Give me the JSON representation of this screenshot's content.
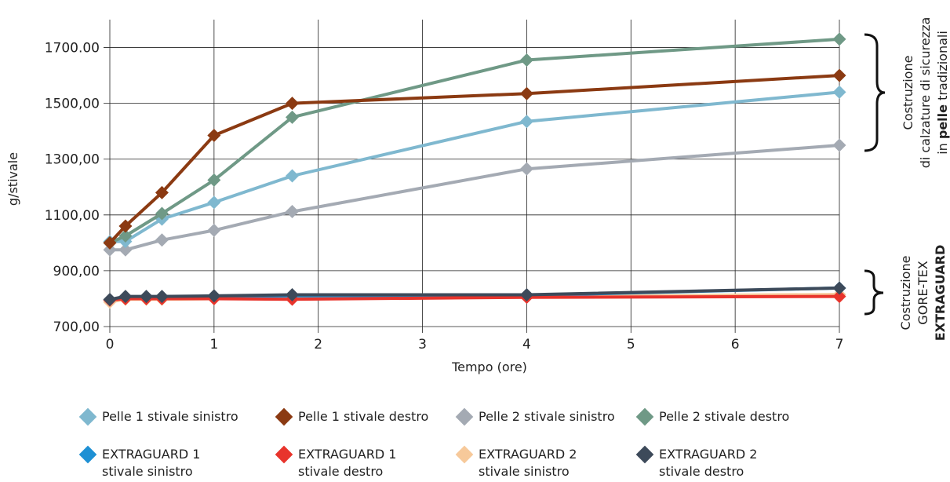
{
  "chart_data": {
    "type": "line",
    "xlabel": "Tempo (ore)",
    "ylabel": "g/stivale",
    "xlim": [
      0,
      7
    ],
    "ylim": [
      700,
      1800
    ],
    "xticks": [
      0,
      1,
      2,
      3,
      4,
      5,
      6,
      7
    ],
    "xtick_labels": [
      "0",
      "1",
      "2",
      "3",
      "4",
      "5",
      "6",
      "7"
    ],
    "yticks": [
      700,
      900,
      1100,
      1300,
      1500,
      1700
    ],
    "ytick_labels": [
      "700,00",
      "900,00",
      "1100,00",
      "1300,00",
      "1500,00",
      "1700.00"
    ],
    "grid": "vertical",
    "legend_position": "bottom",
    "series": [
      {
        "name": "Pelle 1 stivale sinistro",
        "color": "#7fb8cf",
        "x": [
          0,
          0.15,
          0.5,
          1,
          1.75,
          4,
          7
        ],
        "y": [
          1005,
          1005,
          1085,
          1145,
          1240,
          1435,
          1540
        ]
      },
      {
        "name": "Pelle 1 stivale destro",
        "color": "#8b3a12",
        "x": [
          0,
          0.15,
          0.5,
          1,
          1.75,
          4,
          7
        ],
        "y": [
          1000,
          1060,
          1180,
          1385,
          1500,
          1535,
          1600
        ]
      },
      {
        "name": "Pelle 2 stivale sinistro",
        "color": "#a4aab3",
        "x": [
          0,
          0.15,
          0.5,
          1,
          1.75,
          4,
          7
        ],
        "y": [
          975,
          975,
          1010,
          1045,
          1112,
          1265,
          1350
        ]
      },
      {
        "name": "Pelle 2 stivale destro",
        "color": "#6f9986",
        "x": [
          0,
          0.15,
          0.5,
          1,
          1.75,
          4,
          7
        ],
        "y": [
          1000,
          1025,
          1105,
          1225,
          1450,
          1655,
          1730
        ]
      },
      {
        "name": "EXTRAGUARD 1\nstivale sinistro",
        "color": "#1e90d4",
        "x": [
          0,
          0.15,
          0.35,
          0.5,
          1,
          1.75,
          4,
          7
        ],
        "y": [
          795,
          805,
          805,
          805,
          805,
          810,
          812,
          838
        ]
      },
      {
        "name": "EXTRAGUARD 1\nstivale destro",
        "color": "#e8342c",
        "x": [
          0,
          0.15,
          0.35,
          0.5,
          1,
          1.75,
          4,
          7
        ],
        "y": [
          795,
          800,
          800,
          800,
          800,
          798,
          805,
          808
        ]
      },
      {
        "name": "EXTRAGUARD 2\nstivale sinistro",
        "color": "#f7c99a",
        "x": [
          0,
          0.15,
          0.35,
          0.5,
          1,
          1.75,
          4,
          7
        ],
        "y": [
          788,
          798,
          798,
          798,
          800,
          803,
          808,
          815
        ]
      },
      {
        "name": "EXTRAGUARD 2\nstivale destro",
        "color": "#3d4a5a",
        "x": [
          0,
          0.15,
          0.35,
          0.5,
          1,
          1.75,
          4,
          7
        ],
        "y": [
          797,
          808,
          808,
          808,
          810,
          814,
          814,
          838
        ]
      }
    ],
    "annotations": {
      "leather": [
        "Costruzione",
        "di calzature di sicurezza",
        "in ",
        "pelle",
        " tradizionali"
      ],
      "goretex": [
        "Costruzione",
        "GORE-TEX",
        "EXTRAGUARD"
      ]
    }
  }
}
